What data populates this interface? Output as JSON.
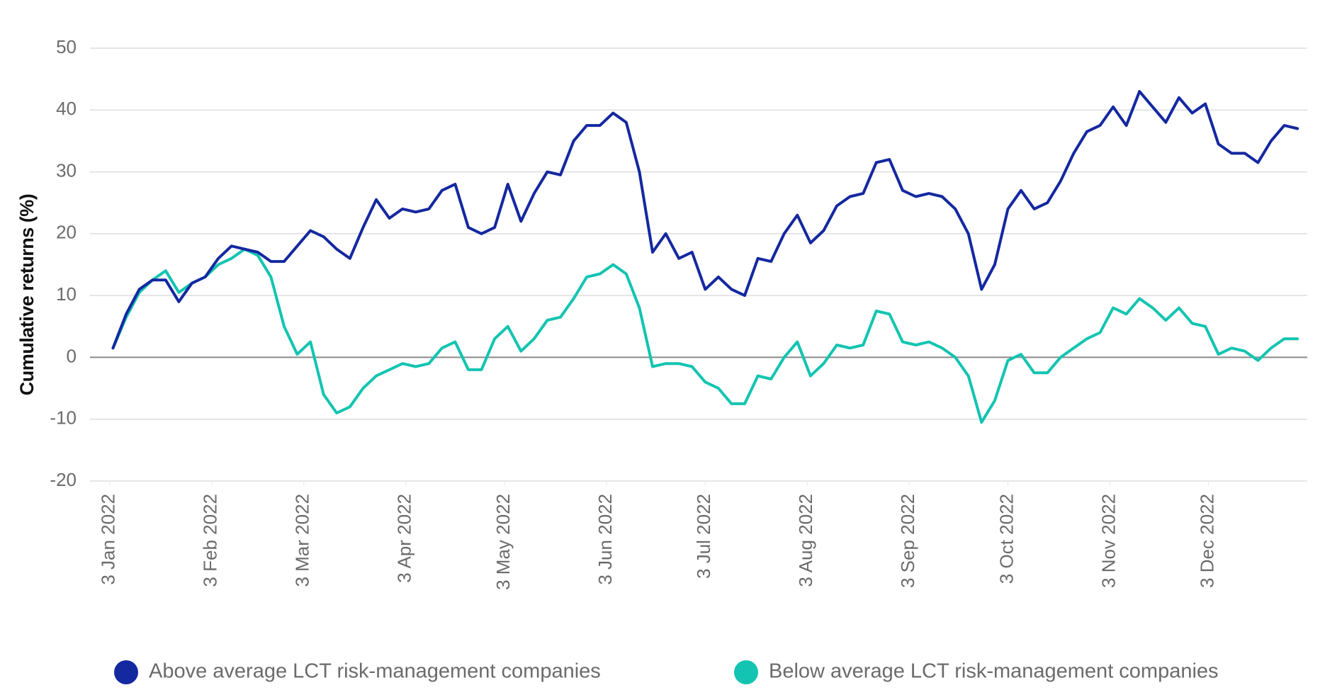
{
  "chart_data": {
    "type": "line",
    "y_label": "Cumulative returns (%)",
    "x": [
      "2022-01-04",
      "2022-01-08",
      "2022-01-12",
      "2022-01-16",
      "2022-01-20",
      "2022-01-24",
      "2022-01-28",
      "2022-02-01",
      "2022-02-05",
      "2022-02-09",
      "2022-02-13",
      "2022-02-17",
      "2022-02-21",
      "2022-02-25",
      "2022-03-01",
      "2022-03-05",
      "2022-03-09",
      "2022-03-13",
      "2022-03-17",
      "2022-03-21",
      "2022-03-25",
      "2022-03-29",
      "2022-04-02",
      "2022-04-06",
      "2022-04-10",
      "2022-04-14",
      "2022-04-18",
      "2022-04-22",
      "2022-04-26",
      "2022-04-30",
      "2022-05-04",
      "2022-05-08",
      "2022-05-12",
      "2022-05-16",
      "2022-05-20",
      "2022-05-24",
      "2022-05-28",
      "2022-06-01",
      "2022-06-05",
      "2022-06-09",
      "2022-06-13",
      "2022-06-17",
      "2022-06-21",
      "2022-06-25",
      "2022-06-29",
      "2022-07-03",
      "2022-07-07",
      "2022-07-11",
      "2022-07-15",
      "2022-07-19",
      "2022-07-23",
      "2022-07-27",
      "2022-07-31",
      "2022-08-04",
      "2022-08-08",
      "2022-08-12",
      "2022-08-16",
      "2022-08-20",
      "2022-08-24",
      "2022-08-28",
      "2022-09-01",
      "2022-09-05",
      "2022-09-09",
      "2022-09-13",
      "2022-09-17",
      "2022-09-21",
      "2022-09-25",
      "2022-09-29",
      "2022-10-03",
      "2022-10-07",
      "2022-10-11",
      "2022-10-15",
      "2022-10-19",
      "2022-10-23",
      "2022-10-27",
      "2022-10-31",
      "2022-11-04",
      "2022-11-08",
      "2022-11-12",
      "2022-11-16",
      "2022-11-20",
      "2022-11-24",
      "2022-11-28",
      "2022-12-02",
      "2022-12-06",
      "2022-12-10",
      "2022-12-14",
      "2022-12-18",
      "2022-12-22",
      "2022-12-26",
      "2022-12-30"
    ],
    "series": [
      {
        "name": "Above average LCT risk-management companies",
        "color": "#1428a0",
        "values": [
          1.5,
          7,
          11,
          12.5,
          12.5,
          9,
          12,
          13,
          16,
          18,
          17.5,
          17,
          15.5,
          15.5,
          18,
          20.5,
          19.5,
          17.5,
          16,
          21,
          25.5,
          22.5,
          24,
          23.5,
          24,
          27,
          28,
          21,
          20,
          21,
          28,
          22,
          26.5,
          30,
          29.5,
          35,
          37.5,
          37.5,
          39.5,
          38,
          30,
          17,
          20,
          16,
          17,
          11,
          13,
          11,
          10,
          16,
          15.5,
          20,
          23,
          18.5,
          20.5,
          24.5,
          26,
          26.5,
          31.5,
          32,
          27,
          26,
          26.5,
          26,
          24,
          20,
          11,
          15,
          24,
          27,
          24,
          25,
          28.5,
          33,
          36.5,
          37.5,
          40.5,
          37.5,
          43,
          40.5,
          38,
          42,
          39.5,
          41,
          34.5,
          33,
          33,
          31.5,
          35,
          37.5,
          37
        ]
      },
      {
        "name": "Below average LCT risk-management companies",
        "color": "#12c4b1",
        "values": [
          1.5,
          6.5,
          10.5,
          12.5,
          14,
          10.5,
          12,
          13,
          15,
          16,
          17.5,
          16.5,
          13,
          5,
          0.5,
          2.5,
          -6,
          -9,
          -8,
          -5,
          -3,
          -2,
          -1,
          -1.5,
          -1,
          1.5,
          2.5,
          -2,
          -2,
          3,
          5,
          1,
          3,
          6,
          6.5,
          9.5,
          13,
          13.5,
          15,
          13.5,
          8,
          -1.5,
          -1,
          -1,
          -1.5,
          -4,
          -5,
          -7.5,
          -7.5,
          -3,
          -3.5,
          0,
          2.5,
          -3,
          -1,
          2,
          1.5,
          2,
          7.5,
          7,
          2.5,
          2,
          2.5,
          1.5,
          0,
          -3,
          -10.5,
          -7,
          -0.5,
          0.5,
          -2.5,
          -2.5,
          0,
          1.5,
          3,
          4,
          8,
          7,
          9.5,
          8,
          6,
          8,
          5.5,
          5,
          0.5,
          1.5,
          1,
          -0.5,
          1.5,
          3,
          3
        ]
      }
    ],
    "xlim": [
      "2021-12-28",
      "2023-01-02"
    ],
    "xticks": [
      {
        "value": "2022-01-03",
        "label": "3 Jan 2022"
      },
      {
        "value": "2022-02-03",
        "label": "3 Feb 2022"
      },
      {
        "value": "2022-03-03",
        "label": "3 Mar 2022"
      },
      {
        "value": "2022-04-03",
        "label": "3 Apr 2022"
      },
      {
        "value": "2022-05-03",
        "label": "3 May 2022"
      },
      {
        "value": "2022-06-03",
        "label": "3 Jun 2022"
      },
      {
        "value": "2022-07-03",
        "label": "3 Jul 2022"
      },
      {
        "value": "2022-08-03",
        "label": "3 Aug 2022"
      },
      {
        "value": "2022-09-03",
        "label": "3 Sep 2022"
      },
      {
        "value": "2022-10-03",
        "label": "3 Oct 2022"
      },
      {
        "value": "2022-11-03",
        "label": "3 Nov 2022"
      },
      {
        "value": "2022-12-03",
        "label": "3 Dec 2022"
      }
    ],
    "ylim": [
      -20,
      50
    ],
    "yticks": [
      -20,
      -10,
      0,
      10,
      20,
      30,
      40,
      50
    ],
    "grid": true,
    "legend": "bottom"
  }
}
